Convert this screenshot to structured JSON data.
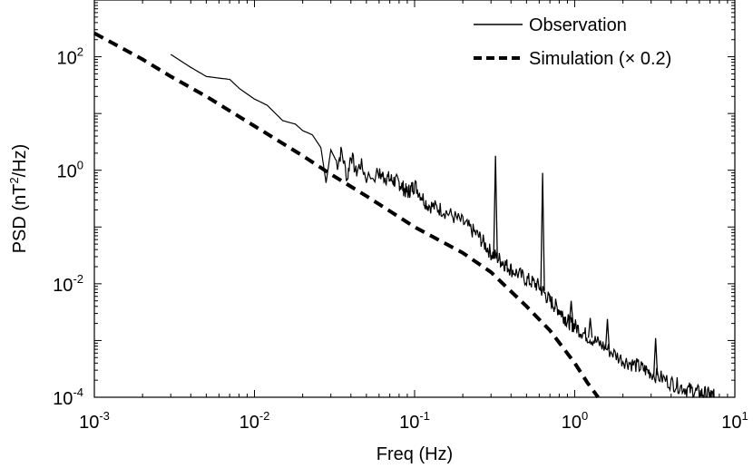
{
  "chart_data": {
    "type": "line",
    "title": "",
    "xlabel": "Freq (Hz)",
    "ylabel": {
      "pre": "PSD (nT",
      "sup": "2",
      "post": "/Hz)"
    },
    "x_scale": "log",
    "y_scale": "log",
    "xlim": [
      0.001,
      10
    ],
    "ylim": [
      0.0001,
      1000
    ],
    "grid": false,
    "legend_position": "top-right",
    "x_ticks": [
      {
        "base": "10",
        "exp": "-3",
        "value": 0.001
      },
      {
        "base": "10",
        "exp": "-2",
        "value": 0.01
      },
      {
        "base": "10",
        "exp": "-1",
        "value": 0.1
      },
      {
        "base": "10",
        "exp": "0",
        "value": 1
      },
      {
        "base": "10",
        "exp": "1",
        "value": 10
      }
    ],
    "y_ticks": [
      {
        "base": "10",
        "exp": "-4",
        "value": 0.0001
      },
      {
        "base": "10",
        "exp": "-2",
        "value": 0.01
      },
      {
        "base": "10",
        "exp": "0",
        "value": 1
      },
      {
        "base": "10",
        "exp": "2",
        "value": 100
      }
    ],
    "series": [
      {
        "name": "Observation",
        "style": "solid",
        "color": "#000000",
        "x": [
          0.003,
          0.004,
          0.005,
          0.006,
          0.007,
          0.008,
          0.01,
          0.012,
          0.015,
          0.018,
          0.02,
          0.023,
          0.026,
          0.028,
          0.03,
          0.033,
          0.035,
          0.038,
          0.04,
          0.043,
          0.046,
          0.05,
          0.06,
          0.07,
          0.08,
          0.09,
          0.1,
          0.12,
          0.15,
          0.2,
          0.25,
          0.3,
          0.35,
          0.4,
          0.5,
          0.6,
          0.7,
          0.8,
          0.9,
          1.0,
          1.2,
          1.5,
          2,
          2.5,
          3,
          4,
          5,
          6,
          7,
          7.5
        ],
        "y": [
          110,
          65,
          45,
          42,
          40,
          28,
          18,
          14,
          7.5,
          6.5,
          5.0,
          4.2,
          2.5,
          0.6,
          2.3,
          1.3,
          2.2,
          0.7,
          2.0,
          0.9,
          1.3,
          0.75,
          0.85,
          0.7,
          0.6,
          0.4,
          0.55,
          0.25,
          0.2,
          0.12,
          0.07,
          0.035,
          0.025,
          0.018,
          0.012,
          0.009,
          0.005,
          0.0035,
          0.0022,
          0.0018,
          0.0012,
          0.0008,
          0.00045,
          0.00035,
          0.00027,
          0.00018,
          0.00014,
          0.00012,
          0.00011,
          0.0001
        ],
        "peaks": [
          {
            "x": 0.32,
            "y": 1.8
          },
          {
            "x": 0.63,
            "y": 0.9
          },
          {
            "x": 0.95,
            "y": 0.005
          },
          {
            "x": 1.25,
            "y": 0.0025
          },
          {
            "x": 1.6,
            "y": 0.0024
          },
          {
            "x": 3.2,
            "y": 0.0011
          }
        ]
      },
      {
        "name": "Simulation (× 0.2)",
        "style": "dashed",
        "color": "#000000",
        "x": [
          0.001,
          0.002,
          0.003,
          0.005,
          0.01,
          0.02,
          0.03,
          0.05,
          0.1,
          0.2,
          0.3,
          0.5,
          0.7,
          1.0,
          1.2,
          1.4
        ],
        "y": [
          260,
          90,
          45,
          20,
          6,
          1.8,
          0.85,
          0.35,
          0.1,
          0.035,
          0.016,
          0.004,
          0.0015,
          0.0004,
          0.00018,
          0.0001
        ]
      }
    ]
  }
}
